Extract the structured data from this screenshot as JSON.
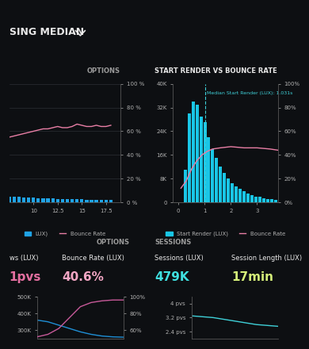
{
  "title": "SING MEDIAN",
  "chart_data": [
    {
      "type": "bar",
      "heading": "OPTIONS",
      "x": [
        7.5,
        8,
        8.5,
        9,
        9.5,
        10,
        10.5,
        11,
        11.5,
        12,
        12.5,
        13,
        13.5,
        14,
        14.5,
        15,
        15.5,
        16,
        16.5,
        17,
        17.5,
        18
      ],
      "series": [
        {
          "name": "LUX)",
          "type": "bar",
          "color": "#1fa3e6",
          "values": [
            5,
            4.8,
            4.6,
            4.4,
            4.2,
            4,
            3.8,
            3.6,
            3.4,
            3.2,
            3,
            2.9,
            2.8,
            2.7,
            2.6,
            2.5,
            2.4,
            2.3,
            2.2,
            2.1,
            2,
            1.9
          ]
        },
        {
          "name": "Bounce Rate",
          "type": "line",
          "color": "#e97fa6",
          "values": [
            55,
            56,
            57,
            58,
            59,
            60,
            61,
            62,
            62,
            63,
            64,
            63,
            63,
            64,
            66,
            65,
            64,
            64,
            65,
            64,
            64,
            65
          ]
        }
      ],
      "xlim": [
        7.5,
        19
      ],
      "xticks": [
        10,
        12.5,
        15,
        17.5
      ],
      "ylim": [
        0,
        100
      ],
      "yticks": [
        {
          "value": 0,
          "label": "0 %"
        },
        {
          "value": 20,
          "label": "20 %"
        },
        {
          "value": 40,
          "label": "40 %"
        },
        {
          "value": 60,
          "label": "60 %"
        },
        {
          "value": 80,
          "label": "80 %"
        },
        {
          "value": 100,
          "label": "100 %"
        }
      ],
      "grid": true,
      "legend": "lower center"
    },
    {
      "type": "histogram",
      "title": "START RENDER VS BOUNCE RATE",
      "name": "Start Render (LUX)",
      "color": "#19c6e6",
      "bins": [
        0.2,
        0.35,
        0.5,
        0.65,
        0.8,
        0.95,
        1.1,
        1.25,
        1.4,
        1.55,
        1.7,
        1.85,
        2.0,
        2.15,
        2.3,
        2.45,
        2.6,
        2.75,
        2.9,
        3.05,
        3.2,
        3.35,
        3.5,
        3.65,
        3.8
      ],
      "counts": [
        11000,
        30000,
        34000,
        33000,
        29000,
        27000,
        22000,
        18000,
        15000,
        12000,
        10000,
        8000,
        6500,
        5500,
        4500,
        3800,
        3000,
        2500,
        2000,
        1800,
        1500,
        1200,
        1000,
        800
      ],
      "series": [
        {
          "name": "Bounce Rate",
          "type": "line",
          "axis": "y2",
          "color": "#e97fa6",
          "x": [
            0.1,
            0.3,
            0.5,
            0.7,
            0.9,
            1.1,
            1.3,
            1.6,
            2.0,
            2.5,
            3.0,
            3.5,
            3.8
          ],
          "values": [
            12,
            18,
            28,
            35,
            40,
            43,
            45,
            46,
            47,
            46,
            46,
            45,
            44
          ]
        }
      ],
      "median": {
        "value": 1.031,
        "label": "Median Start Render (LUX): 1.031s"
      },
      "xlim": [
        -0.2,
        3.8
      ],
      "xticks": [
        0,
        1,
        2,
        3
      ],
      "ylim": [
        0,
        40000
      ],
      "yticks": [
        0,
        {
          "value": 8000,
          "label": "8K"
        },
        {
          "value": 16000,
          "label": "16K"
        },
        {
          "value": 24000,
          "label": "24K"
        },
        {
          "value": 32000,
          "label": "32K"
        },
        {
          "value": 40000,
          "label": "40K"
        }
      ],
      "y2lim": [
        0,
        100
      ],
      "y2ticks": [
        {
          "value": 0,
          "label": "0%"
        },
        {
          "value": 20,
          "label": "20%"
        },
        {
          "value": 40,
          "label": "40%"
        },
        {
          "value": 60,
          "label": "60%"
        },
        {
          "value": 80,
          "label": "80%"
        },
        {
          "value": 100,
          "label": "100%"
        }
      ],
      "legend": "lower center"
    },
    {
      "type": "line",
      "heading": "OPTIONS",
      "metrics": [
        {
          "label": "ws (LUX)",
          "value": "1pvs"
        },
        {
          "label": "Bounce Rate (LUX)",
          "value": "40.6%"
        }
      ],
      "x": [
        0,
        1,
        2,
        3,
        4,
        5,
        6,
        7,
        8
      ],
      "series": [
        {
          "color": "#1f8fd6",
          "values": [
            360000,
            350000,
            330000,
            310000,
            290000,
            275000,
            265000,
            260000,
            258000
          ]
        },
        {
          "color": "#c85a9a",
          "axis": "y2",
          "values": [
            52,
            55,
            62,
            75,
            88,
            93,
            95,
            96,
            96
          ]
        }
      ],
      "xlim": [
        0,
        8
      ],
      "xticks": [],
      "ylim": [
        250000,
        500000
      ],
      "yticks": [
        {
          "value": 300000,
          "label": "300K"
        },
        {
          "value": 400000,
          "label": "400K"
        },
        {
          "value": 500000,
          "label": "500K"
        }
      ],
      "y2lim": [
        50,
        100
      ],
      "y2ticks": [
        {
          "value": 60,
          "label": "60%"
        },
        {
          "value": 80,
          "label": "80%"
        },
        {
          "value": 100,
          "label": "100%"
        }
      ]
    },
    {
      "type": "line",
      "heading": "SESSIONS",
      "metrics": [
        {
          "label": "Sessions (LUX)",
          "value": "479K"
        },
        {
          "label": "Session Length (LUX)",
          "value": "17min"
        }
      ],
      "x": [
        0,
        1,
        2,
        3,
        4,
        5,
        6,
        7,
        8
      ],
      "series": [
        {
          "color": "#3fd0d8",
          "values": [
            3.3,
            3.25,
            3.2,
            3.1,
            3.0,
            2.9,
            2.8,
            2.75,
            2.7
          ]
        }
      ],
      "xlim": [
        0,
        8
      ],
      "xticks": [],
      "ylim": [
        2.0,
        4.4
      ],
      "yticks": [
        {
          "value": 2.4,
          "label": "2.4 pvs"
        },
        {
          "value": 3.2,
          "label": "3.2 pvs"
        },
        {
          "value": 4,
          "label": "4 pvs"
        }
      ]
    }
  ]
}
